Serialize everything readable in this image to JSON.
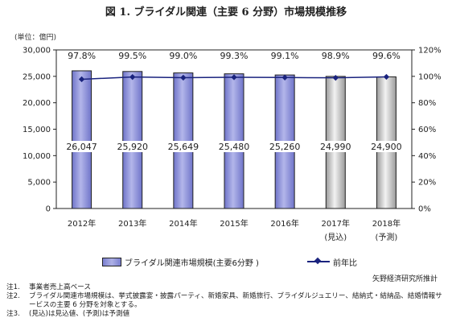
{
  "figure": {
    "title": "図 1. ブライダル関連（主要 6 分野）市場規模推移",
    "unit": "(単位：億円)",
    "source": "矢野経済研究所推計"
  },
  "legend": {
    "bar_label": "ブライダル関連市場規模(主要6分野 )",
    "line_label": "前年比"
  },
  "notes": [
    {
      "id": "注1.",
      "text": "事業者売上高ベース"
    },
    {
      "id": "注2.",
      "text": "ブライダル関連市場規模は、挙式披露宴・披露パーティ、新婚家具、新婚旅行、ブライダルジュエリー、結納式・結納品、結婚情報サービスの主要 6 分野を対象とする。"
    },
    {
      "id": "注3.",
      "text": "(見込)は見込値、(予測)は予測値"
    }
  ],
  "chart_data": {
    "type": "bar",
    "categories": [
      "2012年",
      "2013年",
      "2014年",
      "2015年",
      "2016年",
      "2017年",
      "2018年"
    ],
    "category_sublabels": [
      "",
      "",
      "",
      "",
      "",
      "(見込)",
      "(予測)"
    ],
    "series": [
      {
        "name": "ブライダル関連市場規模(主要6分野 )",
        "type": "bar",
        "values": [
          26047,
          25920,
          25649,
          25480,
          25260,
          24990,
          24900
        ],
        "labels": [
          "26,047",
          "25,920",
          "25,649",
          "25,480",
          "25,260",
          "24,990",
          "24,900"
        ],
        "color": "#8e92d8"
      },
      {
        "name": "前年比",
        "type": "line",
        "axis": "right",
        "values": [
          97.8,
          99.5,
          99.0,
          99.3,
          99.1,
          98.9,
          99.6
        ],
        "labels": [
          "97.8%",
          "99.5%",
          "99.0%",
          "99.3%",
          "99.1%",
          "98.9%",
          "99.6%"
        ],
        "color": "#1a237e"
      }
    ],
    "y_left": {
      "min": 0,
      "max": 30000,
      "ticks": [
        "0",
        "5,000",
        "10,000",
        "15,000",
        "20,000",
        "25,000",
        "30,000"
      ]
    },
    "y_right": {
      "min": 0,
      "max": 120,
      "ticks": [
        "0%",
        "20%",
        "40%",
        "60%",
        "80%",
        "100%",
        "120%"
      ]
    },
    "hatched_categories": [
      "2017年",
      "2018年"
    ],
    "grid": false
  }
}
